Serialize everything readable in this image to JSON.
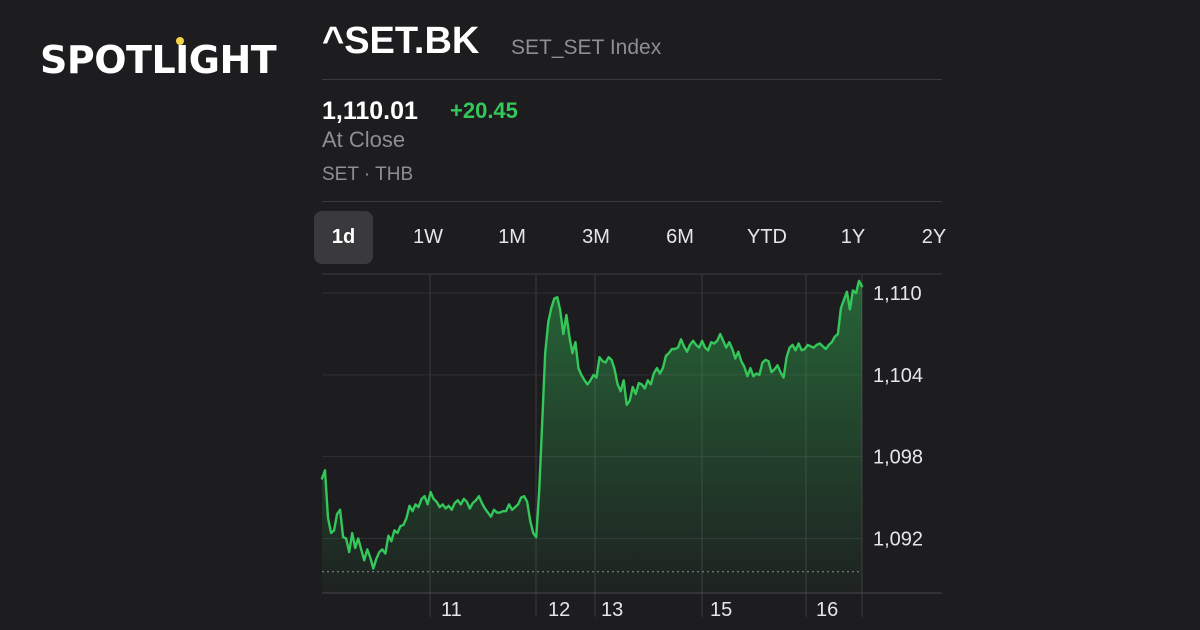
{
  "brand": {
    "logo_text": "SPOTLIGHT"
  },
  "header": {
    "symbol": "^SET.BK",
    "index_name": "SET_SET Index",
    "price": "1,110.01",
    "change": "+20.45",
    "status": "At Close",
    "exchange": "SET · THB"
  },
  "range_tabs": [
    {
      "label": "1d",
      "active": true
    },
    {
      "label": "1W",
      "active": false
    },
    {
      "label": "1M",
      "active": false
    },
    {
      "label": "3M",
      "active": false
    },
    {
      "label": "6M",
      "active": false
    },
    {
      "label": "YTD",
      "active": false
    },
    {
      "label": "1Y",
      "active": false
    },
    {
      "label": "2Y",
      "active": false
    }
  ],
  "colors": {
    "background": "#1d1d1f",
    "accent_green": "#34c759",
    "muted_text": "#8e8e93",
    "grid": "#3a3a3c"
  },
  "chart_data": {
    "type": "area",
    "y_ticks": [
      "1,110",
      "1,104",
      "1,098",
      "1,092"
    ],
    "y_tick_values": [
      1110,
      1104,
      1098,
      1092
    ],
    "x_ticks": [
      "11",
      "12",
      "13",
      "15",
      "16"
    ],
    "ylim": [
      1088,
      1111.4
    ],
    "previous_close": 1089.56,
    "grid": true,
    "series": [
      {
        "values": [
          1096.4,
          1097.0,
          1093.5,
          1092.4,
          1092.6,
          1093.8,
          1094.1,
          1092.1,
          1092.0,
          1091.0,
          1092.4,
          1091.3,
          1092.0,
          1091.2,
          1090.4,
          1091.2,
          1090.6,
          1089.8,
          1090.5,
          1091.0,
          1091.2,
          1090.9,
          1092.2,
          1091.8,
          1092.6,
          1092.4,
          1092.9,
          1093.0,
          1093.5,
          1094.4,
          1094.0,
          1094.5,
          1094.3,
          1094.9,
          1095.1,
          1094.5,
          1095.4,
          1094.9,
          1094.7,
          1094.3,
          1094.5,
          1094.2,
          1094.4,
          1094.1,
          1094.6,
          1094.8,
          1094.5,
          1094.9,
          1094.7,
          1094.2,
          1094.6,
          1094.8,
          1095.1,
          1094.6,
          1094.2,
          1093.9,
          1093.6,
          1094.1,
          1093.9,
          1093.9,
          1094.0,
          1094.0,
          1094.5,
          1094.1,
          1094.3,
          1094.5,
          1095.0,
          1095.1,
          1094.7,
          1093.3,
          1092.4,
          1092.1,
          1095.5,
          1100.5,
          1105.6,
          1107.9,
          1108.9,
          1109.6,
          1109.7,
          1108.7,
          1107.0,
          1108.4,
          1106.8,
          1105.6,
          1106.4,
          1104.5,
          1104.0,
          1103.6,
          1103.3,
          1103.6,
          1104.0,
          1103.8,
          1105.3,
          1105.0,
          1104.9,
          1105.3,
          1105.1,
          1104.4,
          1103.3,
          1102.8,
          1103.6,
          1101.8,
          1102.1,
          1103.1,
          1102.6,
          1103.4,
          1103.3,
          1103.0,
          1103.6,
          1103.3,
          1104.1,
          1104.5,
          1104.1,
          1104.5,
          1105.4,
          1105.6,
          1105.9,
          1105.9,
          1106.0,
          1106.6,
          1106.1,
          1105.7,
          1106.2,
          1106.5,
          1106.2,
          1106.0,
          1106.5,
          1106.0,
          1105.8,
          1106.4,
          1106.3,
          1106.5,
          1107.0,
          1106.5,
          1106.0,
          1106.4,
          1105.9,
          1105.2,
          1105.7,
          1105.0,
          1104.6,
          1103.9,
          1104.5,
          1103.9,
          1104.1,
          1104.0,
          1104.9,
          1105.1,
          1105.0,
          1104.2,
          1104.4,
          1104.7,
          1104.2,
          1103.8,
          1105.3,
          1106.0,
          1106.2,
          1105.8,
          1106.3,
          1105.8,
          1105.9,
          1106.2,
          1106.1,
          1106.0,
          1106.2,
          1106.3,
          1106.1,
          1105.9,
          1106.2,
          1106.4,
          1106.8,
          1107.0,
          1108.9,
          1109.5,
          1110.1,
          1108.8,
          1110.2,
          1110.0,
          1110.9,
          1110.5
        ]
      }
    ]
  }
}
